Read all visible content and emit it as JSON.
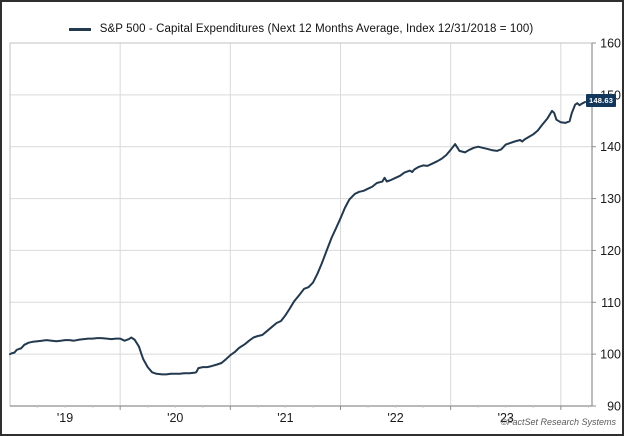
{
  "legend": {
    "label": "S&P 500 - Capital Expenditures (Next 12 Months Average, Index 12/31/2018 = 100)"
  },
  "footer": {
    "copyright": "©FactSet Research Systems"
  },
  "chart_data": {
    "type": "line",
    "title": "S&P 500 - Capital Expenditures (Next 12 Months Average, Index 12/31/2018 = 100)",
    "xlabel": "",
    "ylabel": "",
    "x_domain": [
      2019.0,
      2024.283
    ],
    "y_domain": [
      90,
      160
    ],
    "y_ticks": [
      90,
      100,
      110,
      120,
      130,
      140,
      150,
      160
    ],
    "x_year_gridlines": [
      2020,
      2021,
      2022,
      2023,
      2024
    ],
    "x_tick_labels": [
      {
        "x": 2019.5,
        "label": "'19"
      },
      {
        "x": 2020.5,
        "label": "'20"
      },
      {
        "x": 2021.5,
        "label": "'21"
      },
      {
        "x": 2022.5,
        "label": "'22"
      },
      {
        "x": 2023.5,
        "label": "'23"
      }
    ],
    "grid": true,
    "legend_position": "top-center",
    "last_value": 148.63,
    "last_value_label": "148.63",
    "colors": {
      "line": "#23394e",
      "badge_bg": "#12375a",
      "badge_text": "#ffffff",
      "gridline": "#d9d9d9",
      "frame": "#c2c2c2",
      "axis": "#8f8f8f",
      "minor_tick": "#cccccc",
      "tick_text": "#1a1a1a"
    },
    "series": [
      {
        "name": "S&P 500 - Capital Expenditures (Next 12 Months Average, Index 12/31/2018 = 100)",
        "points": [
          [
            2019.0,
            100.0
          ],
          [
            2019.02,
            100.2
          ],
          [
            2019.04,
            100.3
          ],
          [
            2019.06,
            100.8
          ],
          [
            2019.08,
            101.0
          ],
          [
            2019.1,
            101.1
          ],
          [
            2019.13,
            101.8
          ],
          [
            2019.17,
            102.2
          ],
          [
            2019.21,
            102.4
          ],
          [
            2019.25,
            102.5
          ],
          [
            2019.29,
            102.6
          ],
          [
            2019.33,
            102.7
          ],
          [
            2019.38,
            102.6
          ],
          [
            2019.42,
            102.5
          ],
          [
            2019.46,
            102.6
          ],
          [
            2019.5,
            102.7
          ],
          [
            2019.54,
            102.7
          ],
          [
            2019.58,
            102.6
          ],
          [
            2019.63,
            102.8
          ],
          [
            2019.67,
            102.9
          ],
          [
            2019.71,
            103.0
          ],
          [
            2019.75,
            103.0
          ],
          [
            2019.79,
            103.1
          ],
          [
            2019.83,
            103.1
          ],
          [
            2019.88,
            103.0
          ],
          [
            2019.92,
            102.9
          ],
          [
            2019.96,
            103.0
          ],
          [
            2020.0,
            103.0
          ],
          [
            2020.04,
            102.6
          ],
          [
            2020.08,
            102.9
          ],
          [
            2020.1,
            103.2
          ],
          [
            2020.13,
            102.8
          ],
          [
            2020.17,
            101.5
          ],
          [
            2020.19,
            100.2
          ],
          [
            2020.21,
            99.0
          ],
          [
            2020.25,
            97.5
          ],
          [
            2020.29,
            96.5
          ],
          [
            2020.33,
            96.2
          ],
          [
            2020.38,
            96.1
          ],
          [
            2020.42,
            96.1
          ],
          [
            2020.46,
            96.2
          ],
          [
            2020.5,
            96.2
          ],
          [
            2020.54,
            96.2
          ],
          [
            2020.58,
            96.3
          ],
          [
            2020.63,
            96.3
          ],
          [
            2020.67,
            96.4
          ],
          [
            2020.69,
            96.5
          ],
          [
            2020.71,
            97.3
          ],
          [
            2020.75,
            97.5
          ],
          [
            2020.79,
            97.5
          ],
          [
            2020.83,
            97.7
          ],
          [
            2020.88,
            98.0
          ],
          [
            2020.92,
            98.3
          ],
          [
            2020.96,
            99.0
          ],
          [
            2021.0,
            99.8
          ],
          [
            2021.04,
            100.4
          ],
          [
            2021.08,
            101.2
          ],
          [
            2021.13,
            101.9
          ],
          [
            2021.17,
            102.6
          ],
          [
            2021.21,
            103.2
          ],
          [
            2021.25,
            103.5
          ],
          [
            2021.29,
            103.7
          ],
          [
            2021.33,
            104.4
          ],
          [
            2021.38,
            105.3
          ],
          [
            2021.42,
            106.0
          ],
          [
            2021.46,
            106.4
          ],
          [
            2021.5,
            107.5
          ],
          [
            2021.54,
            108.8
          ],
          [
            2021.58,
            110.2
          ],
          [
            2021.63,
            111.5
          ],
          [
            2021.67,
            112.6
          ],
          [
            2021.71,
            112.9
          ],
          [
            2021.75,
            113.8
          ],
          [
            2021.79,
            115.5
          ],
          [
            2021.83,
            117.5
          ],
          [
            2021.88,
            120.3
          ],
          [
            2021.92,
            122.5
          ],
          [
            2021.96,
            124.3
          ],
          [
            2022.0,
            126.2
          ],
          [
            2022.04,
            128.2
          ],
          [
            2022.08,
            129.8
          ],
          [
            2022.13,
            130.9
          ],
          [
            2022.17,
            131.3
          ],
          [
            2022.21,
            131.5
          ],
          [
            2022.25,
            131.9
          ],
          [
            2022.29,
            132.3
          ],
          [
            2022.33,
            133.0
          ],
          [
            2022.38,
            133.3
          ],
          [
            2022.4,
            134.0
          ],
          [
            2022.42,
            133.3
          ],
          [
            2022.46,
            133.6
          ],
          [
            2022.5,
            134.0
          ],
          [
            2022.54,
            134.4
          ],
          [
            2022.58,
            135.0
          ],
          [
            2022.63,
            135.4
          ],
          [
            2022.65,
            135.1
          ],
          [
            2022.67,
            135.6
          ],
          [
            2022.71,
            136.1
          ],
          [
            2022.75,
            136.4
          ],
          [
            2022.79,
            136.3
          ],
          [
            2022.83,
            136.7
          ],
          [
            2022.88,
            137.2
          ],
          [
            2022.92,
            137.7
          ],
          [
            2022.96,
            138.4
          ],
          [
            2023.0,
            139.4
          ],
          [
            2023.04,
            140.5
          ],
          [
            2023.08,
            139.2
          ],
          [
            2023.13,
            138.9
          ],
          [
            2023.17,
            139.4
          ],
          [
            2023.21,
            139.8
          ],
          [
            2023.25,
            140.0
          ],
          [
            2023.29,
            139.8
          ],
          [
            2023.33,
            139.6
          ],
          [
            2023.38,
            139.3
          ],
          [
            2023.42,
            139.2
          ],
          [
            2023.46,
            139.5
          ],
          [
            2023.5,
            140.4
          ],
          [
            2023.54,
            140.7
          ],
          [
            2023.58,
            141.0
          ],
          [
            2023.63,
            141.3
          ],
          [
            2023.65,
            141.0
          ],
          [
            2023.67,
            141.4
          ],
          [
            2023.71,
            141.9
          ],
          [
            2023.75,
            142.4
          ],
          [
            2023.79,
            143.1
          ],
          [
            2023.83,
            144.2
          ],
          [
            2023.88,
            145.5
          ],
          [
            2023.92,
            146.9
          ],
          [
            2023.94,
            146.5
          ],
          [
            2023.96,
            145.2
          ],
          [
            2024.0,
            144.7
          ],
          [
            2024.04,
            144.6
          ],
          [
            2024.08,
            144.9
          ],
          [
            2024.1,
            146.5
          ],
          [
            2024.13,
            148.1
          ],
          [
            2024.15,
            148.4
          ],
          [
            2024.17,
            148.0
          ],
          [
            2024.19,
            148.3
          ],
          [
            2024.22,
            148.63
          ]
        ]
      }
    ]
  }
}
